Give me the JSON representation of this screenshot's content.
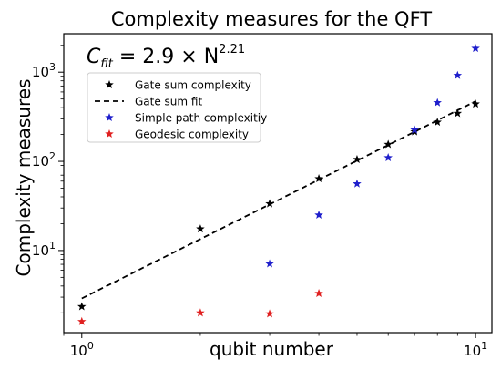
{
  "chart_data": {
    "type": "scatter",
    "title": "Complexity measures for the QFT",
    "xlabel": "qubit number",
    "ylabel": "Complexity measures",
    "xscale": "log",
    "yscale": "log",
    "xlim": [
      0.9,
      11.0
    ],
    "ylim": [
      1.2,
      2700
    ],
    "x_ticks": [
      {
        "value": 1,
        "base": "10",
        "exp": "0"
      },
      {
        "value": 10,
        "base": "10",
        "exp": "1"
      }
    ],
    "y_ticks": [
      {
        "value": 10,
        "base": "10",
        "exp": "1"
      },
      {
        "value": 100,
        "base": "10",
        "exp": "2"
      },
      {
        "value": 1000,
        "base": "10",
        "exp": "3"
      }
    ],
    "annotation": {
      "lhs": "C",
      "sub": "fit",
      "middle": " = 2.9 × N",
      "sup": "2.21"
    },
    "legend_position": "upper-left",
    "grid": false,
    "series": [
      {
        "name": "Gate sum complexity",
        "kind": "marker",
        "color": "#000000",
        "x": [
          1,
          2,
          3,
          4,
          5,
          6,
          7,
          8,
          9,
          10
        ],
        "y": [
          2.35,
          17.5,
          33.5,
          64,
          105,
          155,
          215,
          275,
          345,
          440
        ]
      },
      {
        "name": "Gate sum fit",
        "kind": "dashed-line",
        "color": "#000000",
        "x": [
          1,
          10
        ],
        "y": [
          2.9,
          472
        ]
      },
      {
        "name": "Simple path complexitiy",
        "kind": "marker",
        "color": "#1f1fcc",
        "x": [
          3,
          4,
          5,
          6,
          7,
          8,
          9,
          10
        ],
        "y": [
          7.1,
          25,
          56,
          110,
          225,
          455,
          920,
          1850
        ]
      },
      {
        "name": "Geodesic complexity",
        "kind": "marker",
        "color": "#e02020",
        "x": [
          1,
          2,
          3,
          4
        ],
        "y": [
          1.6,
          2.0,
          1.95,
          3.3
        ]
      }
    ]
  }
}
